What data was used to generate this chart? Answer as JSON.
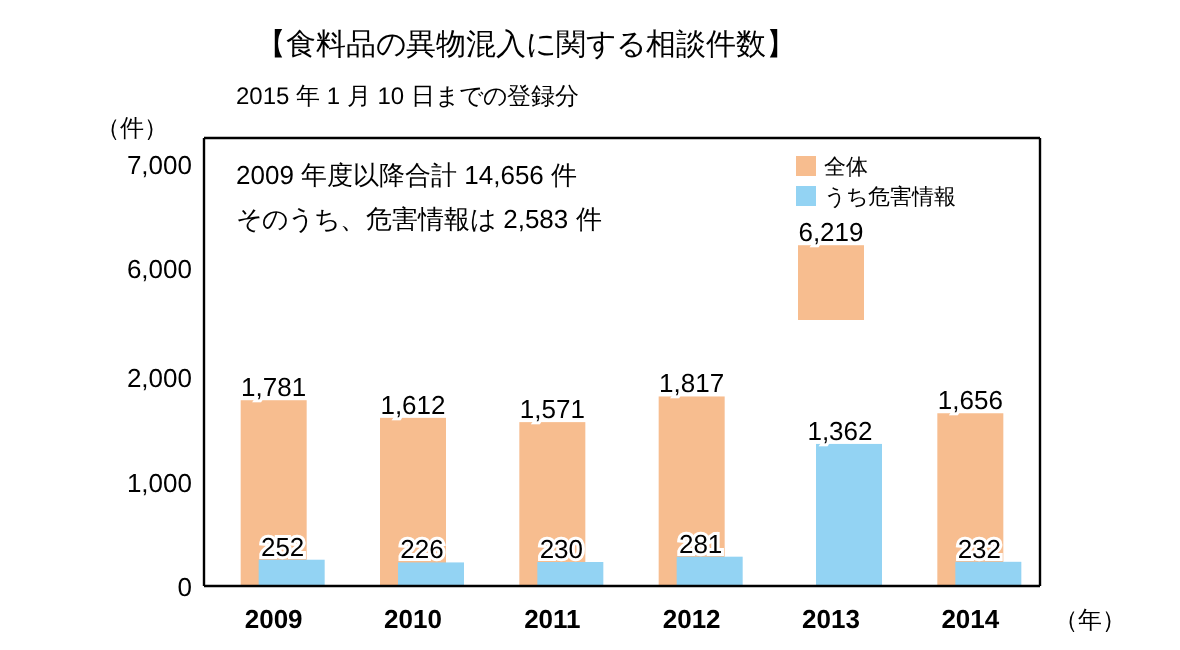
{
  "chart_data": [
    {
      "type": "bar",
      "title": "【食料品の異物混入に関する相談件数】",
      "subtitle": "2015 年 1 月 10 日までの登録分",
      "ylabel": "（件）",
      "annotations": [
        "2009 年度以降合計 14,656 件",
        "そのうち、危害情報は 2,583 件"
      ],
      "series": [
        {
          "name": "全体",
          "color": "#f7bd8f",
          "values": [
            null,
            null,
            null,
            null,
            6219,
            null
          ],
          "value_labels": [
            null,
            null,
            null,
            null,
            "6,219",
            null
          ]
        },
        {
          "name": "うち危害情報",
          "color": "#93d3f3",
          "values": [
            null,
            null,
            null,
            null,
            null,
            null
          ]
        }
      ],
      "ylim": [
        5500,
        7250
      ],
      "yticks": [
        {
          "value": 6000,
          "label": "6,000"
        },
        {
          "value": 7000,
          "label": "7,000"
        }
      ],
      "tick_labels": "y",
      "legend": "top right",
      "grid": false
    },
    {
      "type": "bar",
      "xlabel": "（年）",
      "categories": [
        "2009",
        "2010",
        "2011",
        "2012",
        "2013",
        "2014"
      ],
      "series": [
        {
          "color": "#f7bd8f",
          "values": [
            1781,
            1612,
            1571,
            1817,
            null,
            1656
          ],
          "value_labels": [
            "1,781",
            "1,612",
            "1,571",
            "1,817",
            null,
            "1,656"
          ]
        },
        {
          "color": "#93d3f3",
          "values": [
            252,
            226,
            230,
            281,
            1362,
            232
          ],
          "value_labels": [
            "252",
            "226",
            "230",
            "281",
            "1,362",
            "232"
          ]
        }
      ],
      "ylim": [
        0,
        2550
      ],
      "yticks": [
        {
          "value": 0,
          "label": "0"
        },
        {
          "value": 1000,
          "label": "1,000"
        },
        {
          "value": 2000,
          "label": "2,000"
        }
      ],
      "grid": false
    }
  ]
}
